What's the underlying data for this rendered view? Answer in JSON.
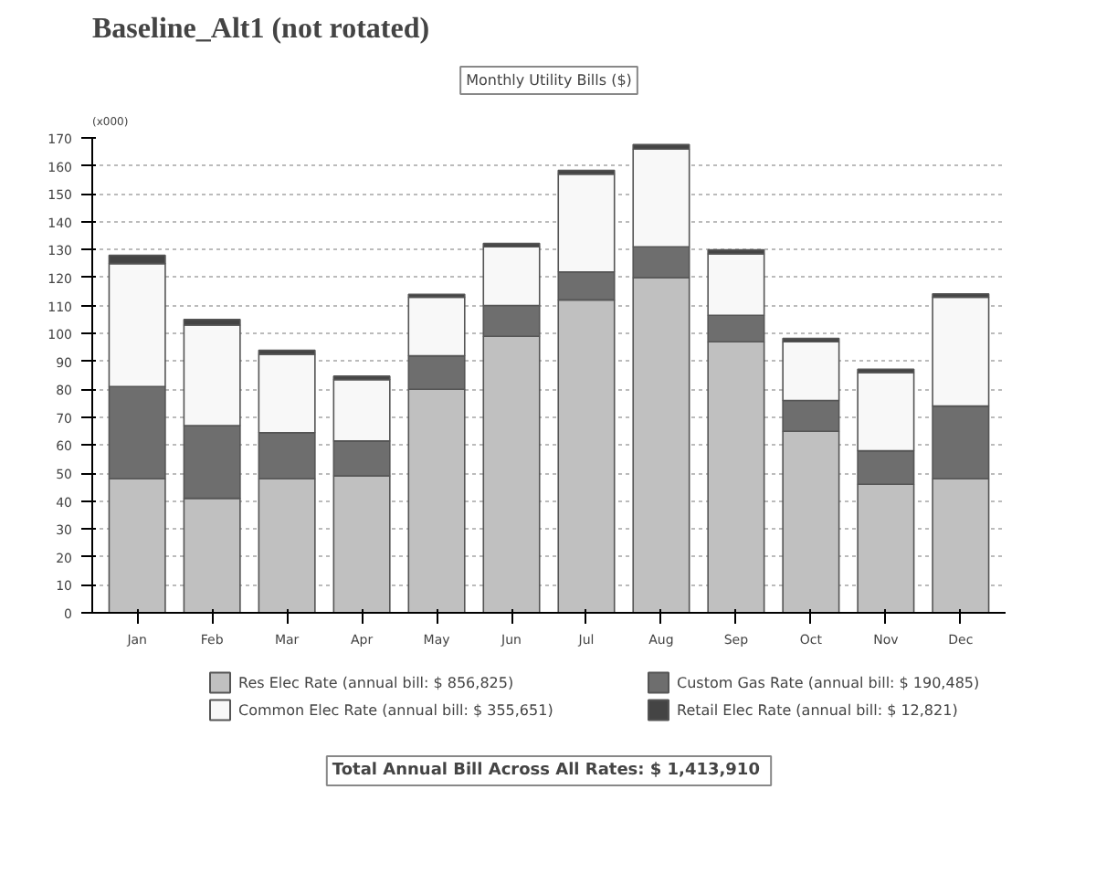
{
  "chart_data": {
    "type": "bar",
    "stacked": true,
    "title": "Baseline_Alt1 (not rotated)",
    "subtitle": "Monthly Utility Bills ($)",
    "ylabel": "(x000)",
    "categories": [
      "Jan",
      "Feb",
      "Mar",
      "Apr",
      "May",
      "Jun",
      "Jul",
      "Aug",
      "Sep",
      "Oct",
      "Nov",
      "Dec"
    ],
    "series": [
      {
        "name": "Res Elec Rate (annual bill: $ 856,825)",
        "color": "#c0c0c0",
        "values": [
          48,
          41,
          48,
          49,
          80,
          99,
          112,
          120,
          97,
          65,
          46,
          48
        ]
      },
      {
        "name": "Custom Gas Rate (annual bill: $ 190,485)",
        "color": "#6e6e6e",
        "values": [
          33,
          26,
          16.5,
          12.5,
          12,
          11,
          10,
          11,
          9.5,
          11,
          12,
          26
        ]
      },
      {
        "name": "Common Elec Rate (annual bill: $ 355,651)",
        "color": "#f8f8f8",
        "values": [
          44,
          36,
          28,
          22,
          21,
          21,
          35,
          35,
          22,
          21,
          28,
          39
        ]
      },
      {
        "name": "Retail Elec Rate (annual bill: $ 12,821)",
        "color": "#444444",
        "values": [
          3,
          2,
          1.5,
          1.2,
          1,
          1.2,
          1.4,
          1.6,
          1.4,
          1.2,
          1.2,
          1.2
        ]
      }
    ],
    "ylim": [
      0,
      170
    ],
    "yticks": [
      0,
      10,
      20,
      30,
      40,
      50,
      60,
      70,
      80,
      90,
      100,
      110,
      120,
      130,
      140,
      150,
      160,
      170
    ],
    "grid": "y",
    "legend": "bottom",
    "annotations": [
      "Total Annual Bill Across All Rates:  $ 1,413,910"
    ]
  }
}
